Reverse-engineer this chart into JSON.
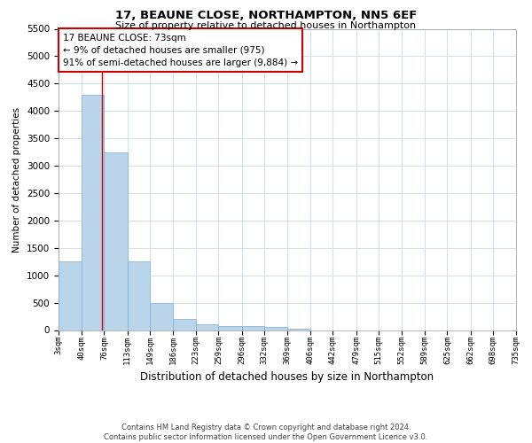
{
  "title": "17, BEAUNE CLOSE, NORTHAMPTON, NN5 6EF",
  "subtitle": "Size of property relative to detached houses in Northampton",
  "xlabel": "Distribution of detached houses by size in Northampton",
  "ylabel": "Number of detached properties",
  "footer_line1": "Contains HM Land Registry data © Crown copyright and database right 2024.",
  "footer_line2": "Contains public sector information licensed under the Open Government Licence v3.0.",
  "bar_color": "#bad4ea",
  "bar_edge_color": "#7aafd4",
  "grid_color": "#ccdaeb",
  "annotation_box_color": "#cc0000",
  "annotation_text_line1": "17 BEAUNE CLOSE: 73sqm",
  "annotation_text_line2": "← 9% of detached houses are smaller (975)",
  "annotation_text_line3": "91% of semi-detached houses are larger (9,884) →",
  "red_line_x": 73,
  "bins": [
    3,
    40,
    76,
    113,
    149,
    186,
    223,
    259,
    296,
    332,
    369,
    406,
    442,
    479,
    515,
    552,
    589,
    625,
    662,
    698,
    735
  ],
  "bin_labels": [
    "3sqm",
    "40sqm",
    "76sqm",
    "113sqm",
    "149sqm",
    "186sqm",
    "223sqm",
    "259sqm",
    "296sqm",
    "332sqm",
    "369sqm",
    "406sqm",
    "442sqm",
    "479sqm",
    "515sqm",
    "552sqm",
    "589sqm",
    "625sqm",
    "662sqm",
    "698sqm",
    "735sqm"
  ],
  "bar_heights": [
    1250,
    4300,
    3250,
    1250,
    500,
    200,
    100,
    75,
    75,
    50,
    30,
    0,
    0,
    0,
    0,
    0,
    0,
    0,
    0,
    0
  ],
  "ylim": [
    0,
    5500
  ],
  "yticks": [
    0,
    500,
    1000,
    1500,
    2000,
    2500,
    3000,
    3500,
    4000,
    4500,
    5000,
    5500
  ]
}
